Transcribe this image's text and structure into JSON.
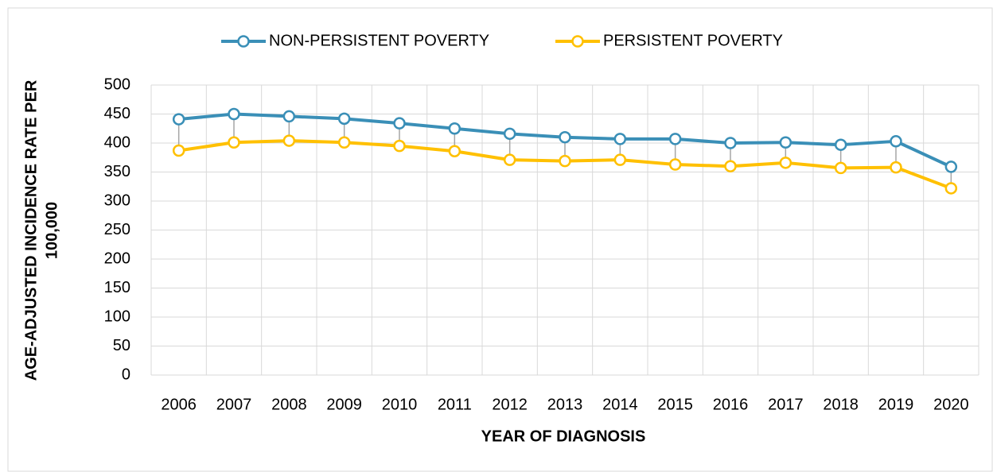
{
  "chart_data": {
    "type": "line",
    "xlabel": "YEAR OF DIAGNOSIS",
    "ylabel": [
      "AGE-ADJUSTED INCIDENCE RATE PER",
      "100,000"
    ],
    "categories": [
      "2006",
      "2007",
      "2008",
      "2009",
      "2010",
      "2011",
      "2012",
      "2013",
      "2014",
      "2015",
      "2016",
      "2017",
      "2018",
      "2019",
      "2020"
    ],
    "series": [
      {
        "name": "NON-PERSISTENT POVERTY",
        "color": "#3a8fb7",
        "values": [
          441,
          450,
          446,
          442,
          434,
          425,
          416,
          410,
          407,
          407,
          400,
          401,
          397,
          403,
          359
        ]
      },
      {
        "name": "PERSISTENT POVERTY",
        "color": "#ffc000",
        "values": [
          387,
          401,
          404,
          401,
          395,
          386,
          371,
          369,
          371,
          363,
          360,
          366,
          357,
          358,
          322
        ]
      }
    ],
    "ylim": [
      0,
      500
    ],
    "yticks": [
      0,
      50,
      100,
      150,
      200,
      250,
      300,
      350,
      400,
      450,
      500
    ],
    "grid": true,
    "high_low_lines": true,
    "legend": "top"
  }
}
